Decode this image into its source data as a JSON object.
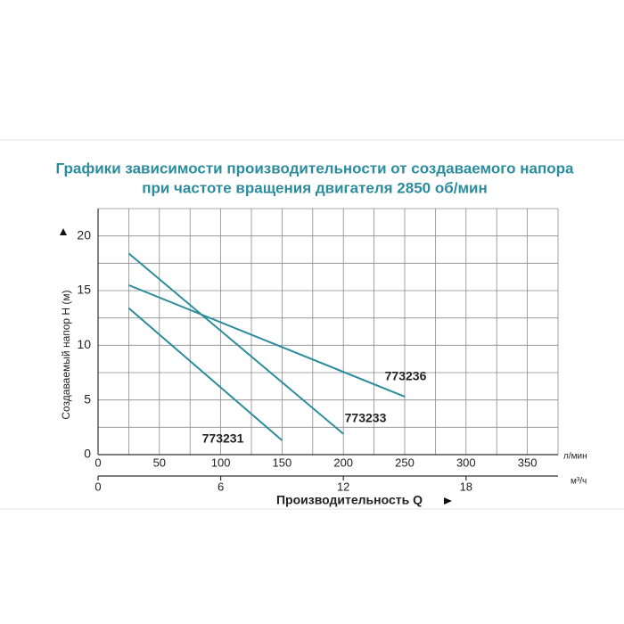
{
  "chart_data": {
    "type": "line",
    "title": "Графики зависимости производительности от создаваемого напора",
    "subtitle": "при частоте вращения двигателя 2850 об/мин",
    "y_label": "Создаваемый напор H (м)",
    "x_label": "Производительность Q",
    "x_unit": "л/мин",
    "x2_unit": "м³/ч",
    "xlim": [
      0,
      375
    ],
    "xticks": [
      0,
      50,
      100,
      150,
      200,
      250,
      300,
      350
    ],
    "minor_xticks": [
      25,
      75,
      125,
      175,
      225,
      275,
      325,
      375
    ],
    "x2lim": [
      0,
      22.5
    ],
    "x2ticks": [
      0,
      6,
      12,
      18
    ],
    "ylim": [
      0,
      22.5
    ],
    "yticks": [
      0,
      5,
      10,
      15,
      20
    ],
    "minor_yticks": [
      2.5,
      7.5,
      12.5,
      17.5,
      22.5
    ],
    "grid": true,
    "series": [
      {
        "name": "773231",
        "color": "#2b8c9e",
        "x": [
          25,
          150
        ],
        "values": [
          13.4,
          1.3
        ]
      },
      {
        "name": "773233",
        "color": "#2b8c9e",
        "x": [
          25,
          200
        ],
        "values": [
          18.4,
          1.9
        ]
      },
      {
        "name": "773236",
        "color": "#2b8c9e",
        "x": [
          25,
          250
        ],
        "values": [
          15.5,
          5.3
        ]
      }
    ]
  }
}
